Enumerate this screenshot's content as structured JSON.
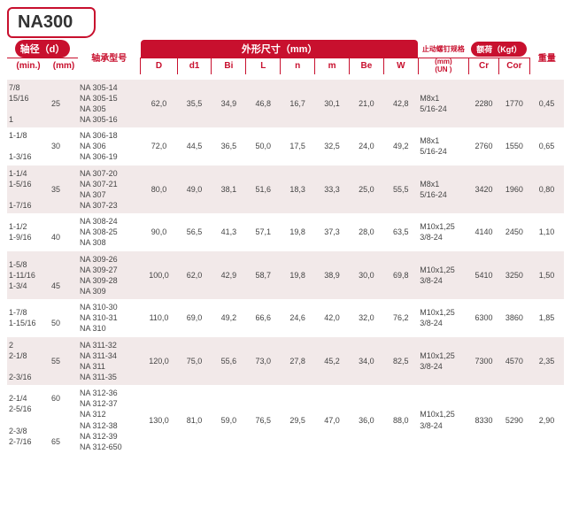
{
  "title": "NA300",
  "header": {
    "shaft_label": "轴径（d）",
    "min_label": "(min.)",
    "mm_label": "(mm)",
    "model_label": "轴承型号",
    "dim_group_label": "外形尺寸（mm）",
    "cols": {
      "D": "D",
      "d1": "d1",
      "Bi": "Bi",
      "L": "L",
      "n": "n",
      "m": "m",
      "Be": "Be",
      "W": "W"
    },
    "thread_label": "止动螺钉规格",
    "thread_unit": "(mm)",
    "thread_un": "(UN )",
    "load_label": "额荷（Kgf）",
    "Cr": "Cr",
    "Cor": "Cor",
    "weight_label": "重量"
  },
  "col_widths": {
    "min": 42,
    "mm": 28,
    "model": 62,
    "D": 36,
    "d1": 34,
    "Bi": 34,
    "L": 34,
    "n": 34,
    "m": 34,
    "Be": 34,
    "W": 34,
    "thread": 50,
    "Cr": 30,
    "Cor": 30,
    "weight": 34
  },
  "colors": {
    "accent": "#c8102e",
    "alt_bg": "#f2e9e9",
    "text": "#444444"
  },
  "rows": [
    {
      "alt": true,
      "min": "7/8\n15/16\n\n1",
      "mm": "25",
      "models": "NA 305-14\nNA 305-15\nNA 305\nNA 305-16",
      "D": "62,0",
      "d1": "35,5",
      "Bi": "34,9",
      "L": "46,8",
      "n": "16,7",
      "m": "30,1",
      "Be": "21,0",
      "W": "42,8",
      "thread": "M8x1\n5/16-24",
      "Cr": "2280",
      "Cor": "1770",
      "weight": "0,45"
    },
    {
      "alt": false,
      "min": "1-1/8\n\n1-3/16",
      "mm": "30",
      "models": "NA 306-18\nNA 306\nNA 306-19",
      "D": "72,0",
      "d1": "44,5",
      "Bi": "36,5",
      "L": "50,0",
      "n": "17,5",
      "m": "32,5",
      "Be": "24,0",
      "W": "49,2",
      "thread": "M8x1\n5/16-24",
      "Cr": "2760",
      "Cor": "1550",
      "weight": "0,65"
    },
    {
      "alt": true,
      "min": "1-1/4\n1-5/16\n\n1-7/16",
      "mm": "35",
      "models": "NA 307-20\nNA 307-21\nNA 307\nNA 307-23",
      "D": "80,0",
      "d1": "49,0",
      "Bi": "38,1",
      "L": "51,6",
      "n": "18,3",
      "m": "33,3",
      "Be": "25,0",
      "W": "55,5",
      "thread": "M8x1\n5/16-24",
      "Cr": "3420",
      "Cor": "1960",
      "weight": "0,80"
    },
    {
      "alt": false,
      "min": "1-1/2\n1-9/16",
      "mm": "\n40",
      "models": "NA 308-24\nNA 308-25\nNA 308",
      "D": "90,0",
      "d1": "56,5",
      "Bi": "41,3",
      "L": "57,1",
      "n": "19,8",
      "m": "37,3",
      "Be": "28,0",
      "W": "63,5",
      "thread": "M10x1,25\n3/8-24",
      "Cr": "4140",
      "Cor": "2450",
      "weight": "1,10"
    },
    {
      "alt": true,
      "min": "1-5/8\n1-11/16\n1-3/4",
      "mm": "\n\n45",
      "models": "NA 309-26\nNA 309-27\nNA 309-28\nNA 309",
      "D": "100,0",
      "d1": "62,0",
      "Bi": "42,9",
      "L": "58,7",
      "n": "19,8",
      "m": "38,9",
      "Be": "30,0",
      "W": "69,8",
      "thread": "M10x1,25\n3/8-24",
      "Cr": "5410",
      "Cor": "3250",
      "weight": "1,50"
    },
    {
      "alt": false,
      "min": "1-7/8\n1-15/16",
      "mm": "\n50",
      "models": "NA 310-30\nNA 310-31\nNA 310",
      "D": "110,0",
      "d1": "69,0",
      "Bi": "49,2",
      "L": "66,6",
      "n": "24,6",
      "m": "42,0",
      "Be": "32,0",
      "W": "76,2",
      "thread": "M10x1,25\n3/8-24",
      "Cr": "6300",
      "Cor": "3860",
      "weight": "1,85"
    },
    {
      "alt": true,
      "min": "2\n2-1/8\n\n2-3/16",
      "mm": "55",
      "models": "NA 311-32\nNA 311-34\nNA 311\nNA 311-35",
      "D": "120,0",
      "d1": "75,0",
      "Bi": "55,6",
      "L": "73,0",
      "n": "27,8",
      "m": "45,2",
      "Be": "34,0",
      "W": "82,5",
      "thread": "M10x1,25\n3/8-24",
      "Cr": "7300",
      "Cor": "4570",
      "weight": "2,35"
    },
    {
      "alt": false,
      "min": "2-1/4\n2-5/16\n\n2-3/8\n2-7/16",
      "mm": "60\n\n\n\n65",
      "models": "NA 312-36\nNA 312-37\nNA 312\nNA 312-38\nNA 312-39\nNA 312-650",
      "D": "130,0",
      "d1": "81,0",
      "Bi": "59,0",
      "L": "76,5",
      "n": "29,5",
      "m": "47,0",
      "Be": "36,0",
      "W": "88,0",
      "thread": "M10x1,25\n3/8-24",
      "Cr": "8330",
      "Cor": "5290",
      "weight": "2,90"
    }
  ]
}
